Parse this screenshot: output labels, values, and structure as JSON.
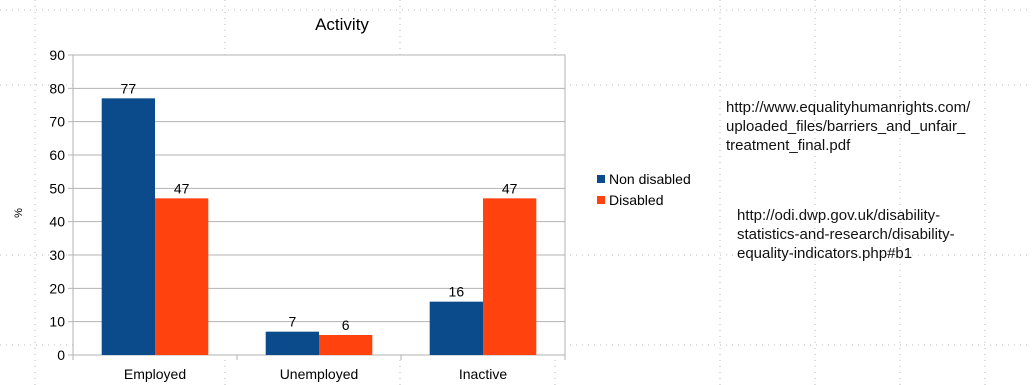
{
  "chart_data": {
    "type": "bar",
    "title": "Activity",
    "ylabel": "%",
    "xlabel": "",
    "categories": [
      "Employed",
      "Unemployed",
      "Inactive"
    ],
    "series": [
      {
        "name": "Non disabled",
        "color": "#0b4a8b",
        "values": [
          77,
          7,
          16
        ]
      },
      {
        "name": "Disabled",
        "color": "#ff420e",
        "values": [
          47,
          6,
          47
        ]
      }
    ],
    "ylim": [
      0,
      90
    ],
    "yticks": [
      "0",
      "10",
      "20",
      "30",
      "40",
      "50",
      "60",
      "70",
      "80",
      "90"
    ],
    "grid": true,
    "legend": "right"
  },
  "sources": [
    {
      "text": "http://www.equalityhumanrights.com/\nuploaded_files/barriers_and_unfair_\ntreatment_final.pdf"
    },
    {
      "text": "http://odi.dwp.gov.uk/disability-\nstatistics-and-research/disability-\nequality-indicators.php#b1"
    }
  ]
}
